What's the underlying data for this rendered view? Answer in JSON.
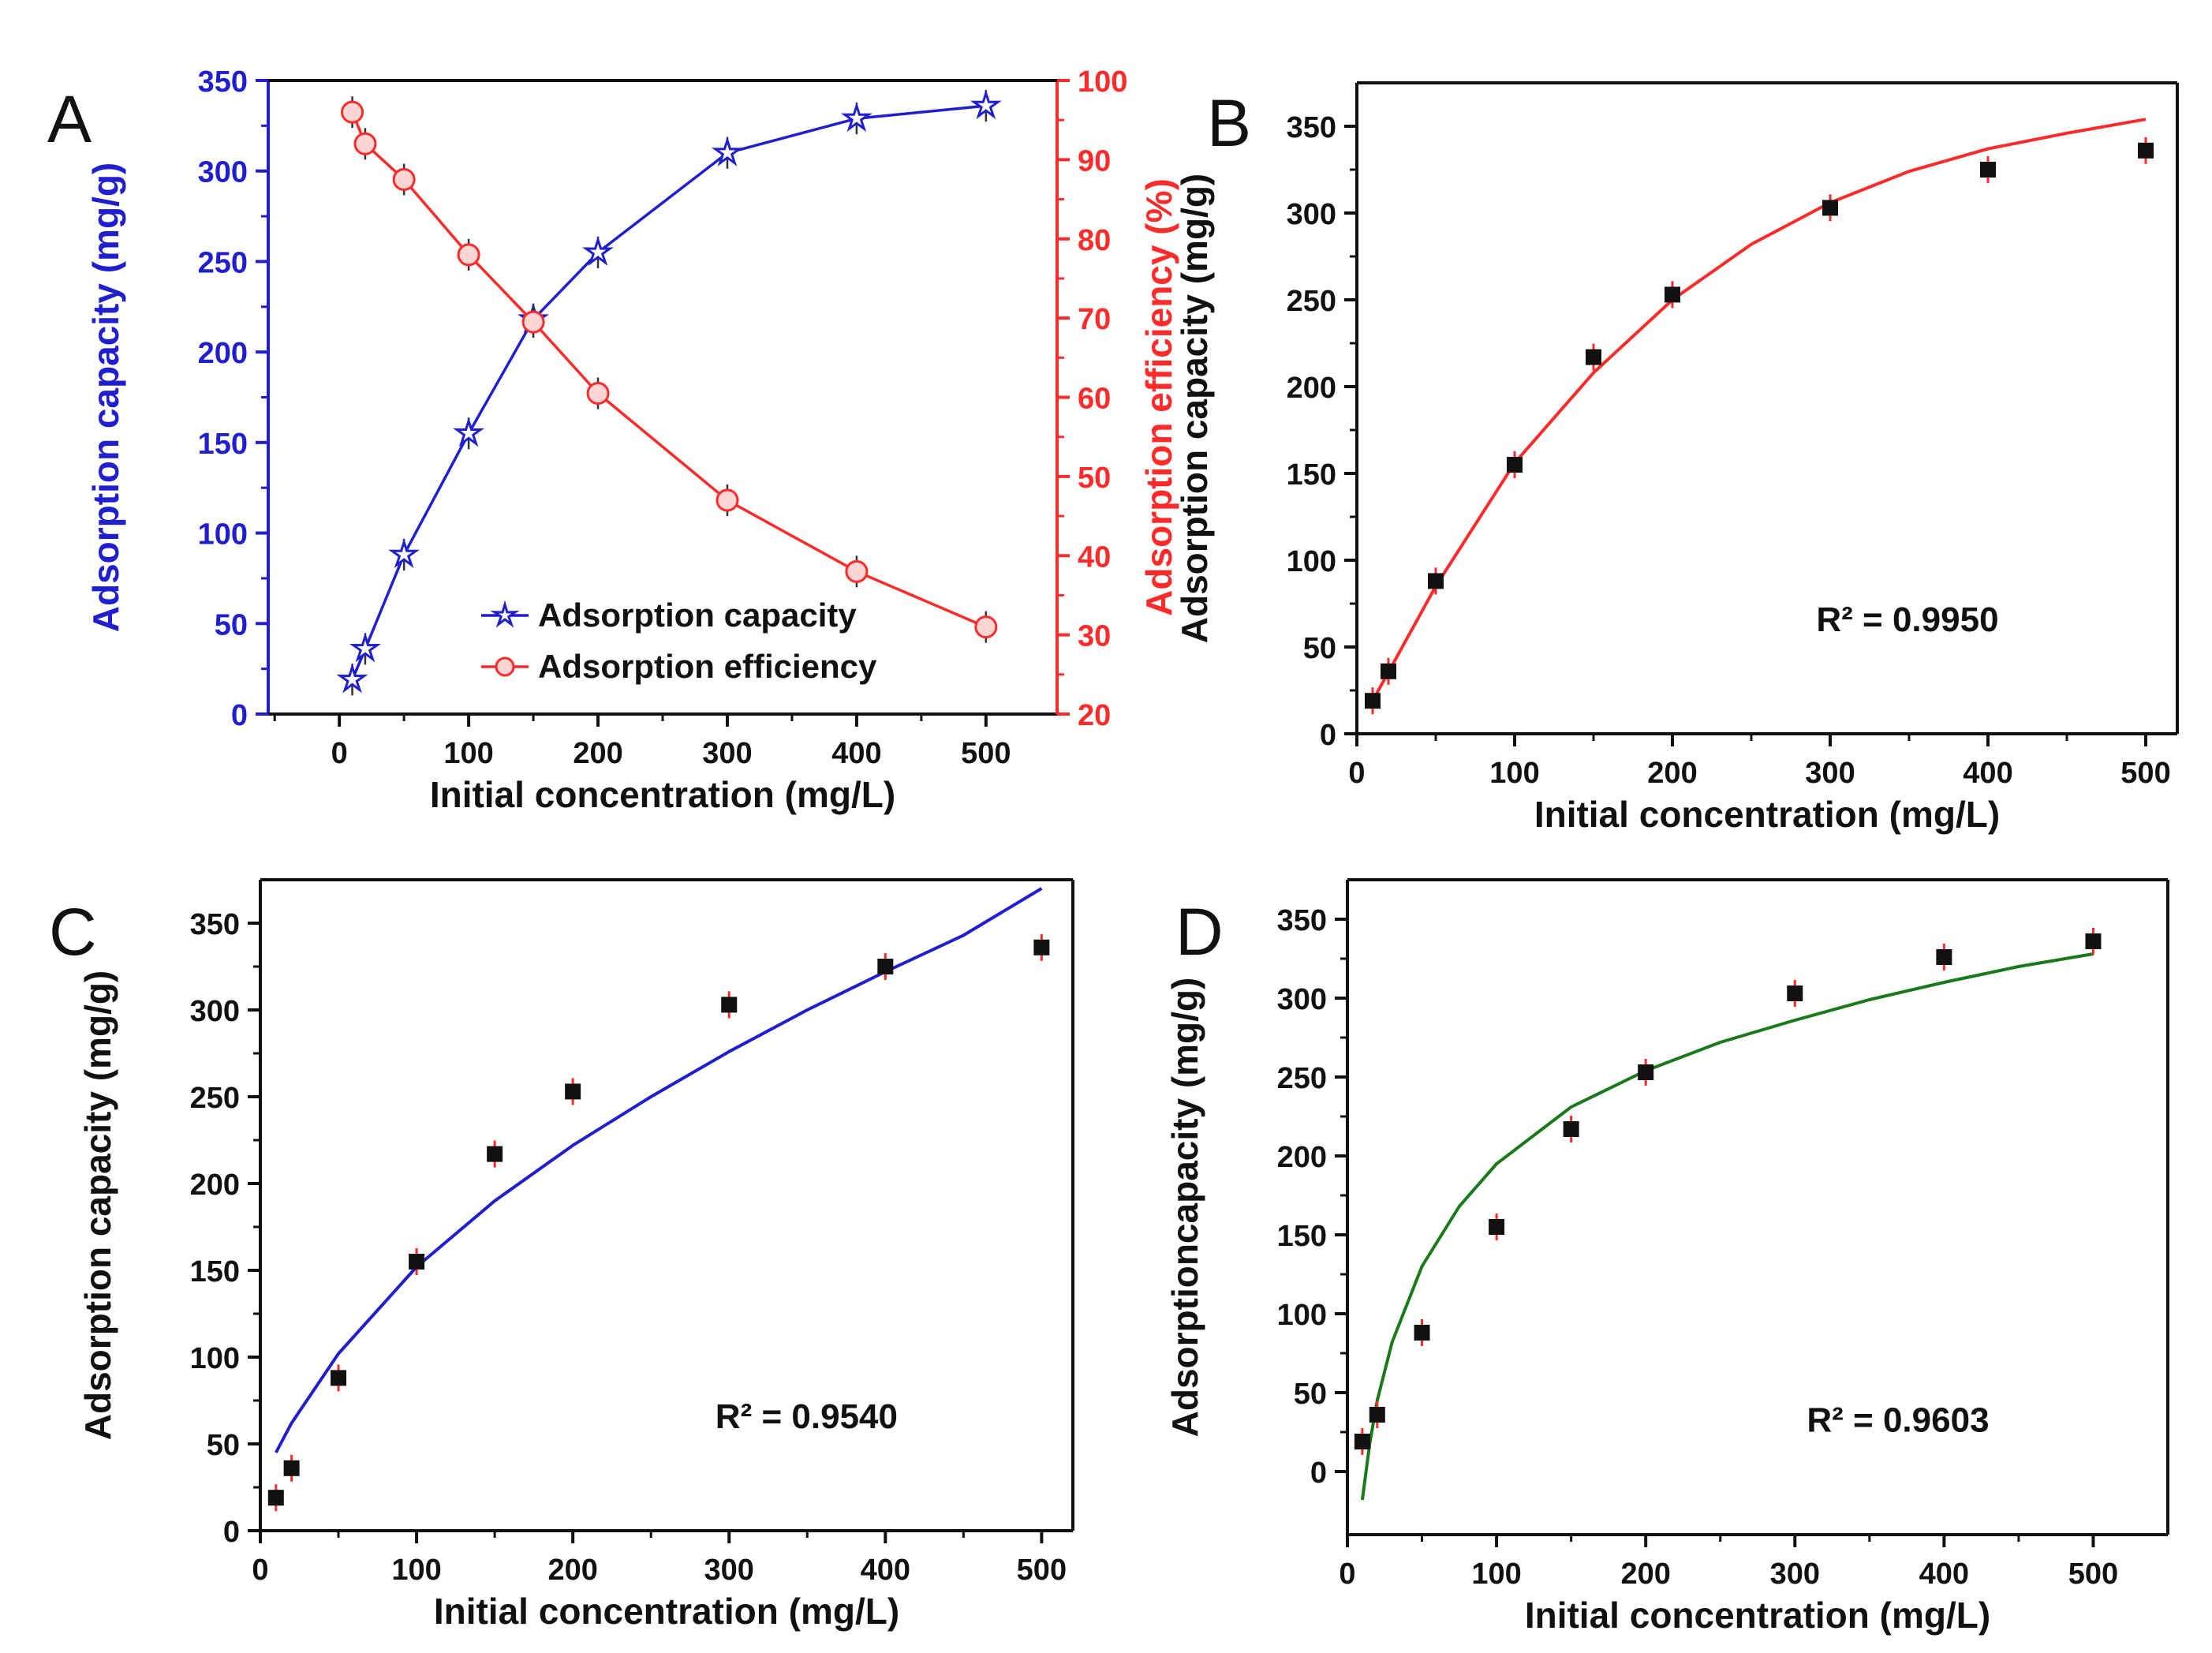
{
  "figure": {
    "colors": {
      "blue": "#1f1fd0",
      "red": "#ff2a2a",
      "green": "#1a7a1a",
      "black": "#111111"
    }
  },
  "chart_data": [
    {
      "panel": "A",
      "type": "line",
      "xlabel": "Initial concentration (mg/L)",
      "ylabel": "Adsorption capacity (mg/g)",
      "y2label": "Adsorption efficiency (%)",
      "xlim": [
        -55,
        555
      ],
      "ylim": [
        0,
        350
      ],
      "y2lim": [
        20,
        100
      ],
      "xticks": [
        0,
        100,
        200,
        300,
        400,
        500
      ],
      "yticks": [
        0,
        50,
        100,
        150,
        200,
        250,
        300,
        350
      ],
      "y2ticks": [
        20,
        30,
        40,
        50,
        60,
        70,
        80,
        90,
        100
      ],
      "legend": [
        "Adsorption capacity",
        "Adsorption efficiency"
      ],
      "legend_position": "bottom-right",
      "series": [
        {
          "name": "Adsorption capacity",
          "axis": "left",
          "color": "#1f1fd0",
          "marker": "star",
          "x": [
            10,
            20,
            50,
            100,
            150,
            200,
            300,
            400,
            500
          ],
          "y": [
            19,
            36,
            88,
            155,
            218,
            255,
            310,
            329,
            336
          ]
        },
        {
          "name": "Adsorption efficiency",
          "axis": "right",
          "color": "#ff2a2a",
          "marker": "circle",
          "x": [
            10,
            20,
            50,
            100,
            150,
            200,
            300,
            400,
            500
          ],
          "y": [
            96,
            92,
            87.5,
            78,
            69.5,
            60.5,
            47,
            38,
            31
          ]
        }
      ]
    },
    {
      "panel": "B",
      "type": "scatter",
      "xlabel": "Initial concentration (mg/L)",
      "ylabel": "Adsorption capacity (mg/g)",
      "xlim": [
        0,
        520
      ],
      "ylim": [
        0,
        375
      ],
      "xticks": [
        0,
        100,
        200,
        300,
        400,
        500
      ],
      "yticks": [
        0,
        50,
        100,
        150,
        200,
        250,
        300,
        350
      ],
      "annotation": "R² = 0.9950",
      "fit_color": "#ff2a2a",
      "points": {
        "x": [
          10,
          20,
          50,
          100,
          150,
          200,
          300,
          400,
          500
        ],
        "y": [
          19,
          36,
          88,
          155,
          217,
          253,
          303,
          325,
          336
        ]
      },
      "fit": {
        "x": [
          10,
          50,
          100,
          150,
          200,
          250,
          300,
          350,
          400,
          450,
          500
        ],
        "y": [
          19,
          85,
          156,
          208,
          250,
          282,
          306,
          324,
          337,
          346,
          354
        ]
      }
    },
    {
      "panel": "C",
      "type": "scatter",
      "xlabel": "Initial concentration (mg/L)",
      "ylabel": "Adsorption capacity (mg/g)",
      "xlim": [
        0,
        520
      ],
      "ylim": [
        0,
        375
      ],
      "xticks": [
        0,
        100,
        200,
        300,
        400,
        500
      ],
      "yticks": [
        0,
        50,
        100,
        150,
        200,
        250,
        300,
        350
      ],
      "annotation": "R² = 0.9540",
      "fit_color": "#1f1fd0",
      "points": {
        "x": [
          10,
          20,
          50,
          100,
          150,
          200,
          300,
          400,
          500
        ],
        "y": [
          19,
          36,
          88,
          155,
          217,
          253,
          303,
          325,
          336
        ]
      },
      "fit": {
        "x": [
          10,
          20,
          50,
          100,
          150,
          200,
          250,
          300,
          350,
          400,
          450,
          500
        ],
        "y": [
          45,
          62,
          102,
          152,
          190,
          222,
          250,
          276,
          300,
          322,
          343,
          370
        ]
      }
    },
    {
      "panel": "D",
      "type": "scatter",
      "xlabel": "Initial concentration (mg/L)",
      "ylabel": "Adsorptioncapacity (mg/g)",
      "xlim": [
        0,
        550
      ],
      "ylim": [
        -40,
        375
      ],
      "xticks": [
        0,
        100,
        200,
        300,
        400,
        500
      ],
      "yticks": [
        0,
        50,
        100,
        150,
        200,
        250,
        300,
        350
      ],
      "annotation": "R² = 0.9603",
      "fit_color": "#1a7a1a",
      "points": {
        "x": [
          10,
          20,
          50,
          100,
          150,
          200,
          300,
          400,
          500
        ],
        "y": [
          19,
          36,
          88,
          155,
          217,
          253,
          303,
          326,
          336
        ]
      },
      "fit": {
        "x": [
          10,
          15,
          20,
          30,
          50,
          75,
          100,
          150,
          200,
          250,
          300,
          350,
          400,
          450,
          500
        ],
        "y": [
          -18,
          18,
          45,
          82,
          130,
          168,
          195,
          231,
          254,
          272,
          286,
          299,
          310,
          320,
          328
        ]
      }
    }
  ]
}
